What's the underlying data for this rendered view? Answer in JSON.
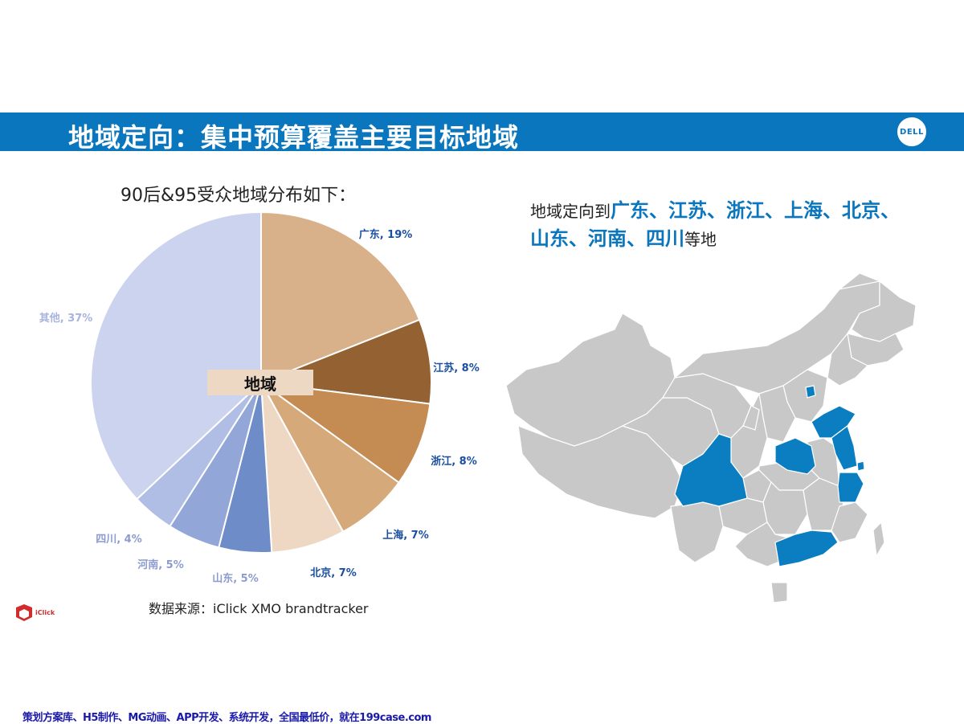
{
  "header": {
    "title": "地域定向：集中预算覆盖主要目标地域",
    "logo_text": "DELL",
    "bar_color": "#0a76bd"
  },
  "chart_data": {
    "type": "pie",
    "title": "90后&95受众地域分布如下：",
    "center_label": "地域",
    "slices": [
      {
        "label": "广东, 19%",
        "value": 19,
        "color": "#d8b08a",
        "label_color": "#1a4fa0"
      },
      {
        "label": "江苏, 8%",
        "value": 8,
        "color": "#946133",
        "label_color": "#1a4fa0"
      },
      {
        "label": "浙江, 8%",
        "value": 8,
        "color": "#c48c52",
        "label_color": "#1a4fa0"
      },
      {
        "label": "上海, 7%",
        "value": 7,
        "color": "#d5a97a",
        "label_color": "#1a4fa0"
      },
      {
        "label": "北京, 7%",
        "value": 7,
        "color": "#eed8c3",
        "label_color": "#1a4fa0"
      },
      {
        "label": "山东, 5%",
        "value": 5,
        "color": "#6e8cc8",
        "label_color": "#8c9bd0"
      },
      {
        "label": "河南, 5%",
        "value": 5,
        "color": "#93a6d8",
        "label_color": "#8c9bd0"
      },
      {
        "label": "四川, 4%",
        "value": 4,
        "color": "#b0bde4",
        "label_color": "#8c9bd0"
      },
      {
        "label": "其他, 37%",
        "value": 37,
        "color": "#cbd3ee",
        "label_color": "#a8b3de"
      }
    ]
  },
  "source_text": "数据来源：iClick XMO brandtracker",
  "iclick_logo_text": "iClick",
  "targeting": {
    "prefix": "地域定向到",
    "highlight": "广东、江苏、浙江、上海、北京、山东、河南、四川",
    "suffix": "等地",
    "highlight_color": "#0a76bd"
  },
  "map": {
    "base_color": "#c8c8c8",
    "highlight_color": "#0a7ec0"
  },
  "footer": {
    "text": "策划方案库、H5制作、MG动画、APP开发、系统开发，全国最低价，就在199case.com"
  }
}
